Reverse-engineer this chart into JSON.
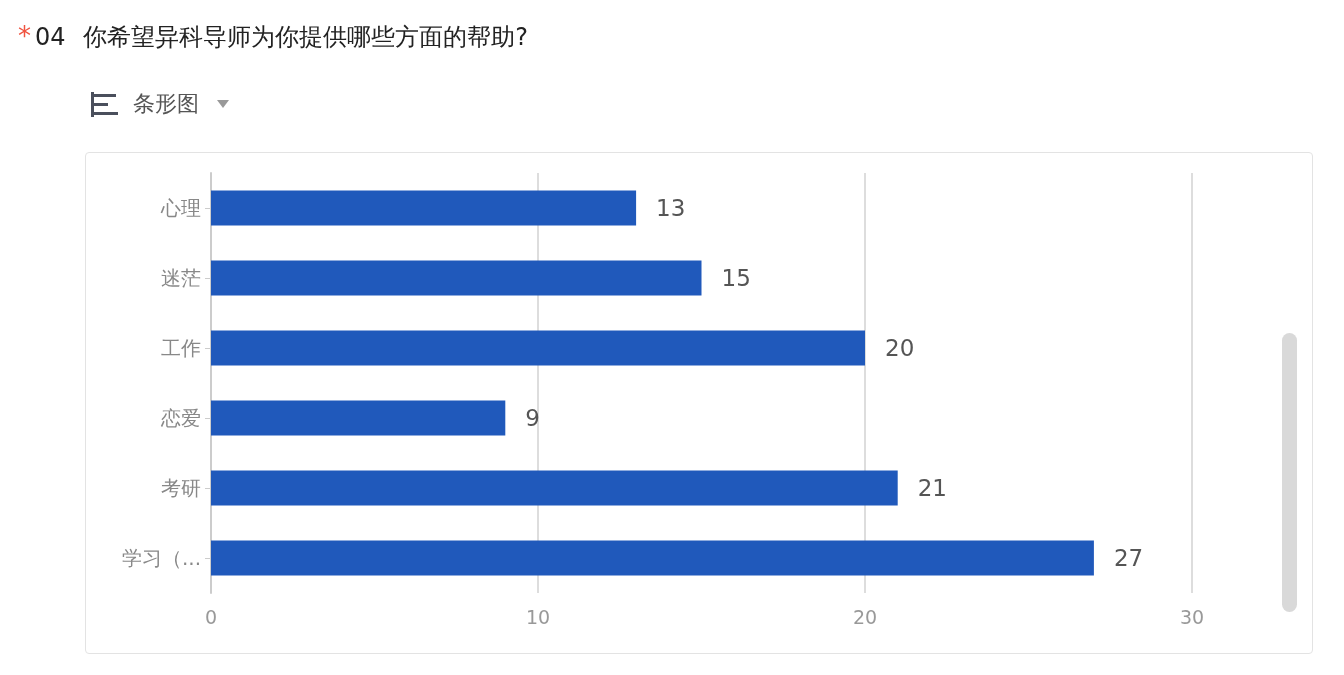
{
  "chart_data": {
    "type": "bar",
    "title": "04 你希望异科导师为你提供哪些方面的帮助?",
    "subtitle": "条形图",
    "annotations": [
      "*"
    ],
    "categories": [
      "心理",
      "迷茫",
      "工作",
      "恋爱",
      "考研",
      "学习（..."
    ],
    "values": [
      13,
      15,
      20,
      9,
      21,
      27
    ],
    "color": "#2059bb",
    "orientation": "horizontal",
    "xlim": [
      0,
      30
    ],
    "xticks": [
      0,
      10,
      20,
      30
    ],
    "grid": "x",
    "data_labels": true
  }
}
